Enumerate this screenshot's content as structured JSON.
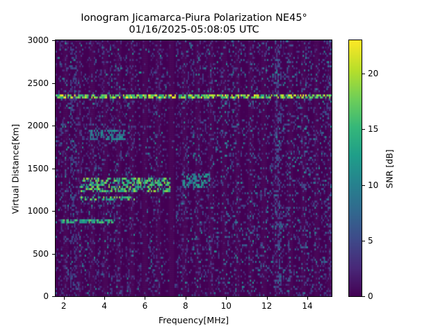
{
  "chart_data": {
    "type": "heatmap",
    "title": "Ionogram Jicamarca-Piura Polarization NE45°",
    "subtitle": "01/16/2025-05:08:05 UTC",
    "xlabel": "Frequency[MHz]",
    "ylabel": "Virtual Distance[Km]",
    "xlim": [
      1.6,
      15.2
    ],
    "ylim": [
      0,
      3000
    ],
    "xticks": [
      "2",
      "4",
      "6",
      "8",
      "10",
      "12",
      "14"
    ],
    "yticks": [
      "0",
      "500",
      "1000",
      "1500",
      "2000",
      "2500",
      "3000"
    ],
    "colorbar": {
      "label": "SNR [dB]",
      "colormap": "viridis",
      "range": [
        0,
        23
      ],
      "ticks": [
        "0",
        "5",
        "10",
        "15",
        "20"
      ]
    },
    "features": [
      {
        "name": "F-layer trace",
        "freq_range_MHz": [
          2.8,
          7.2
        ],
        "distance_km": [
          1250,
          1400
        ],
        "snr_dB": 20
      },
      {
        "name": "F-layer trace (high freq)",
        "freq_range_MHz": [
          7.8,
          9.2
        ],
        "distance_km": [
          1300,
          1450
        ],
        "snr_dB": 14
      },
      {
        "name": "lower trace",
        "freq_range_MHz": [
          2.8,
          5.5
        ],
        "distance_km": [
          1150,
          1150
        ],
        "snr_dB": 20
      },
      {
        "name": "multi-hop echo",
        "freq_range_MHz": [
          3.2,
          5.0
        ],
        "distance_km": [
          1850,
          1950
        ],
        "snr_dB": 12
      },
      {
        "name": "interference line",
        "freq_range_MHz": [
          1.6,
          15.2
        ],
        "distance_km": [
          2350,
          2350
        ],
        "snr_dB": 23
      },
      {
        "name": "interference line",
        "freq_range_MHz": [
          1.8,
          4.5
        ],
        "distance_km": [
          900,
          900
        ],
        "snr_dB": 18
      },
      {
        "name": "vertical noise band",
        "freq_range_MHz": [
          2.3,
          2.6
        ],
        "distance_km": [
          0,
          3000
        ],
        "snr_dB": 6
      },
      {
        "name": "vertical noise band",
        "freq_range_MHz": [
          12.4,
          12.7
        ],
        "distance_km": [
          0,
          3000
        ],
        "snr_dB": 6
      }
    ]
  }
}
